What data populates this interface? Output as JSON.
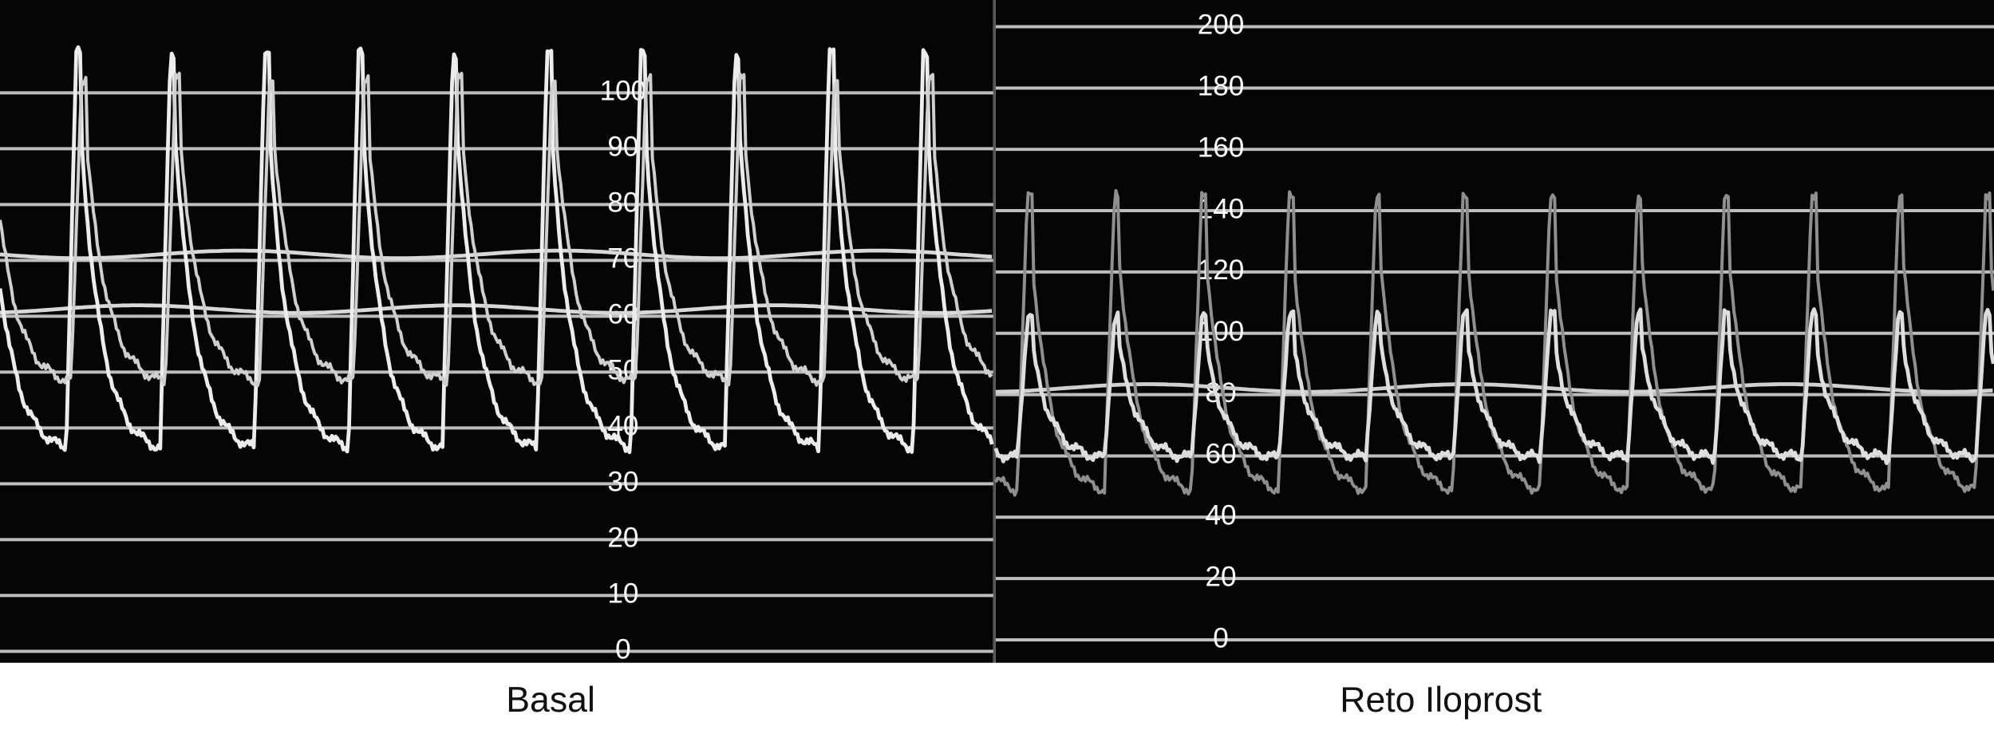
{
  "panels": [
    {
      "label": "Basal",
      "ticks": [
        0,
        10,
        20,
        30,
        40,
        50,
        60,
        70,
        80,
        90,
        100
      ]
    },
    {
      "label": "Reto Iloprost",
      "ticks": [
        0,
        20,
        40,
        60,
        80,
        100,
        120,
        140,
        160,
        180,
        200
      ]
    }
  ]
}
